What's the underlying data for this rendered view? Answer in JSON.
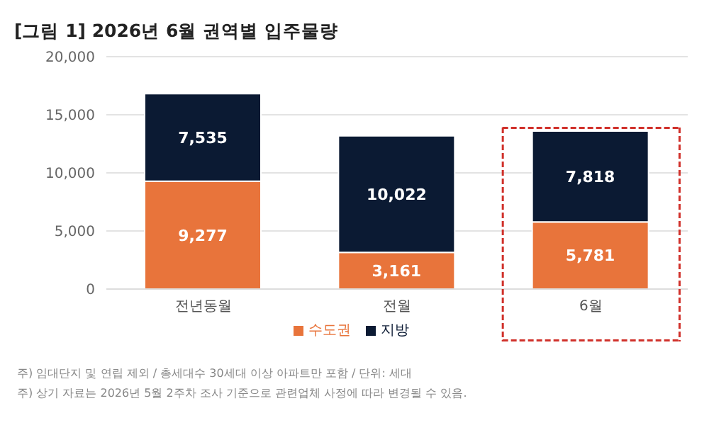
{
  "chart_data": {
    "type": "bar",
    "title": "[그림 1] 2026년  6월 권역별 입주물량",
    "categories": [
      "전년동월",
      "전월",
      "6월"
    ],
    "series": [
      {
        "name": "수도권",
        "color": "#e8743b",
        "values": [
          9277,
          3161,
          5781
        ],
        "value_labels": [
          "9,277",
          "3,161",
          "5,781"
        ]
      },
      {
        "name": "지방",
        "color": "#0b1a33",
        "values": [
          7535,
          10022,
          7818
        ],
        "value_labels": [
          "7,535",
          "10,022",
          "7,818"
        ]
      }
    ],
    "stacked": true,
    "ylim": [
      0,
      20000
    ],
    "yticks": [
      0,
      {
        "value": 5000,
        "label": "5,000"
      },
      {
        "value": 10000,
        "label": "10,000"
      },
      {
        "value": 15000,
        "label": "15,000"
      },
      {
        "value": 20000,
        "label": "20,000"
      }
    ],
    "grid": "y",
    "legend": "bottom",
    "annotations": [
      "주) 임대단지 및 연립 제외 / 총세대수 30세대 이상 아파트만 포함 / 단위: 세대",
      "주) 상기 자료는 2026년 5월 2주차 조사 기준으로 관련업체 사정에 따라 변경될 수 있음."
    ]
  }
}
